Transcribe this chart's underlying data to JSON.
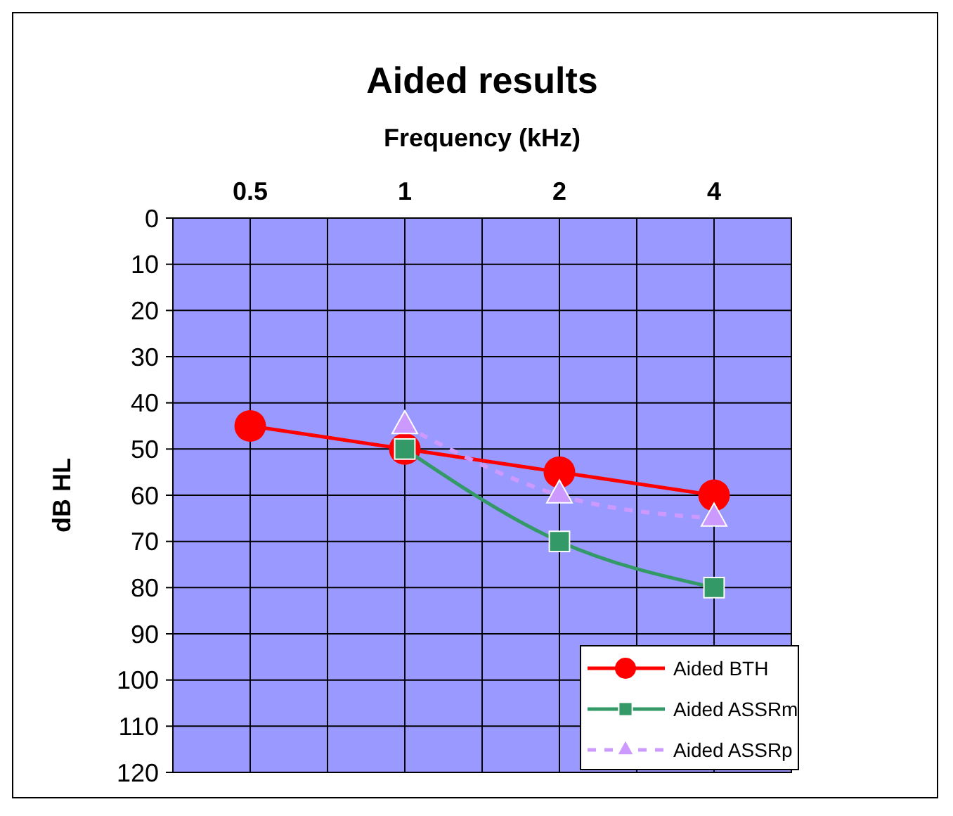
{
  "chart_data": {
    "type": "line",
    "title": "Aided results",
    "xlabel": "Frequency (kHz)",
    "ylabel": "dB HL",
    "categories": [
      "0.5",
      "1",
      "2",
      "4"
    ],
    "ylim": [
      120,
      0
    ],
    "yticks": [
      0,
      10,
      20,
      30,
      40,
      50,
      60,
      70,
      80,
      90,
      100,
      110,
      120
    ],
    "grid": true,
    "legend": "bottom right",
    "series": [
      {
        "name": "Aided BTH",
        "color": "#ff0000",
        "values": [
          45,
          50,
          55,
          60
        ],
        "marker": "circle",
        "line_style": "solid"
      },
      {
        "name": "Aided ASSRm",
        "color": "#339966",
        "values": [
          null,
          50,
          70,
          80
        ],
        "marker": "square",
        "line_style": "solid"
      },
      {
        "name": "Aided ASSRp",
        "color": "#cc99ff",
        "values": [
          null,
          45,
          60,
          65
        ],
        "marker": "triangle",
        "line_style": "dashed"
      }
    ]
  }
}
